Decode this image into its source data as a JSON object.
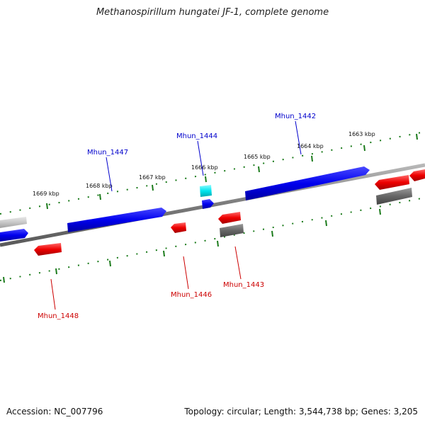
{
  "title": "Methanospirillum hungatei JF-1, complete genome",
  "footer": {
    "accession": "Accession: NC_007796",
    "summary": "Topology: circular; Length: 3,544,738 bp; Genes: 3,205"
  },
  "colors": {
    "forward_gene": "#0000ee",
    "reverse_gene": "#ee0000",
    "rna_gene": "#00e5ee",
    "pseudo_gene": "#666666",
    "ruler_dots": "#1a7a1a",
    "backbone": "#808080"
  },
  "ruler": {
    "tick_labels": [
      "1669 kbp",
      "1668 kbp",
      "1667 kbp",
      "1666 kbp",
      "1665 kbp",
      "1664 kbp",
      "1663 kbp"
    ]
  },
  "genes": {
    "labels": {
      "g1447": "Mhun_1447",
      "g1444": "Mhun_1444",
      "g1442": "Mhun_1442",
      "g1448": "Mhun_1448",
      "g1446": "Mhun_1446",
      "g1443": "Mhun_1443"
    }
  }
}
